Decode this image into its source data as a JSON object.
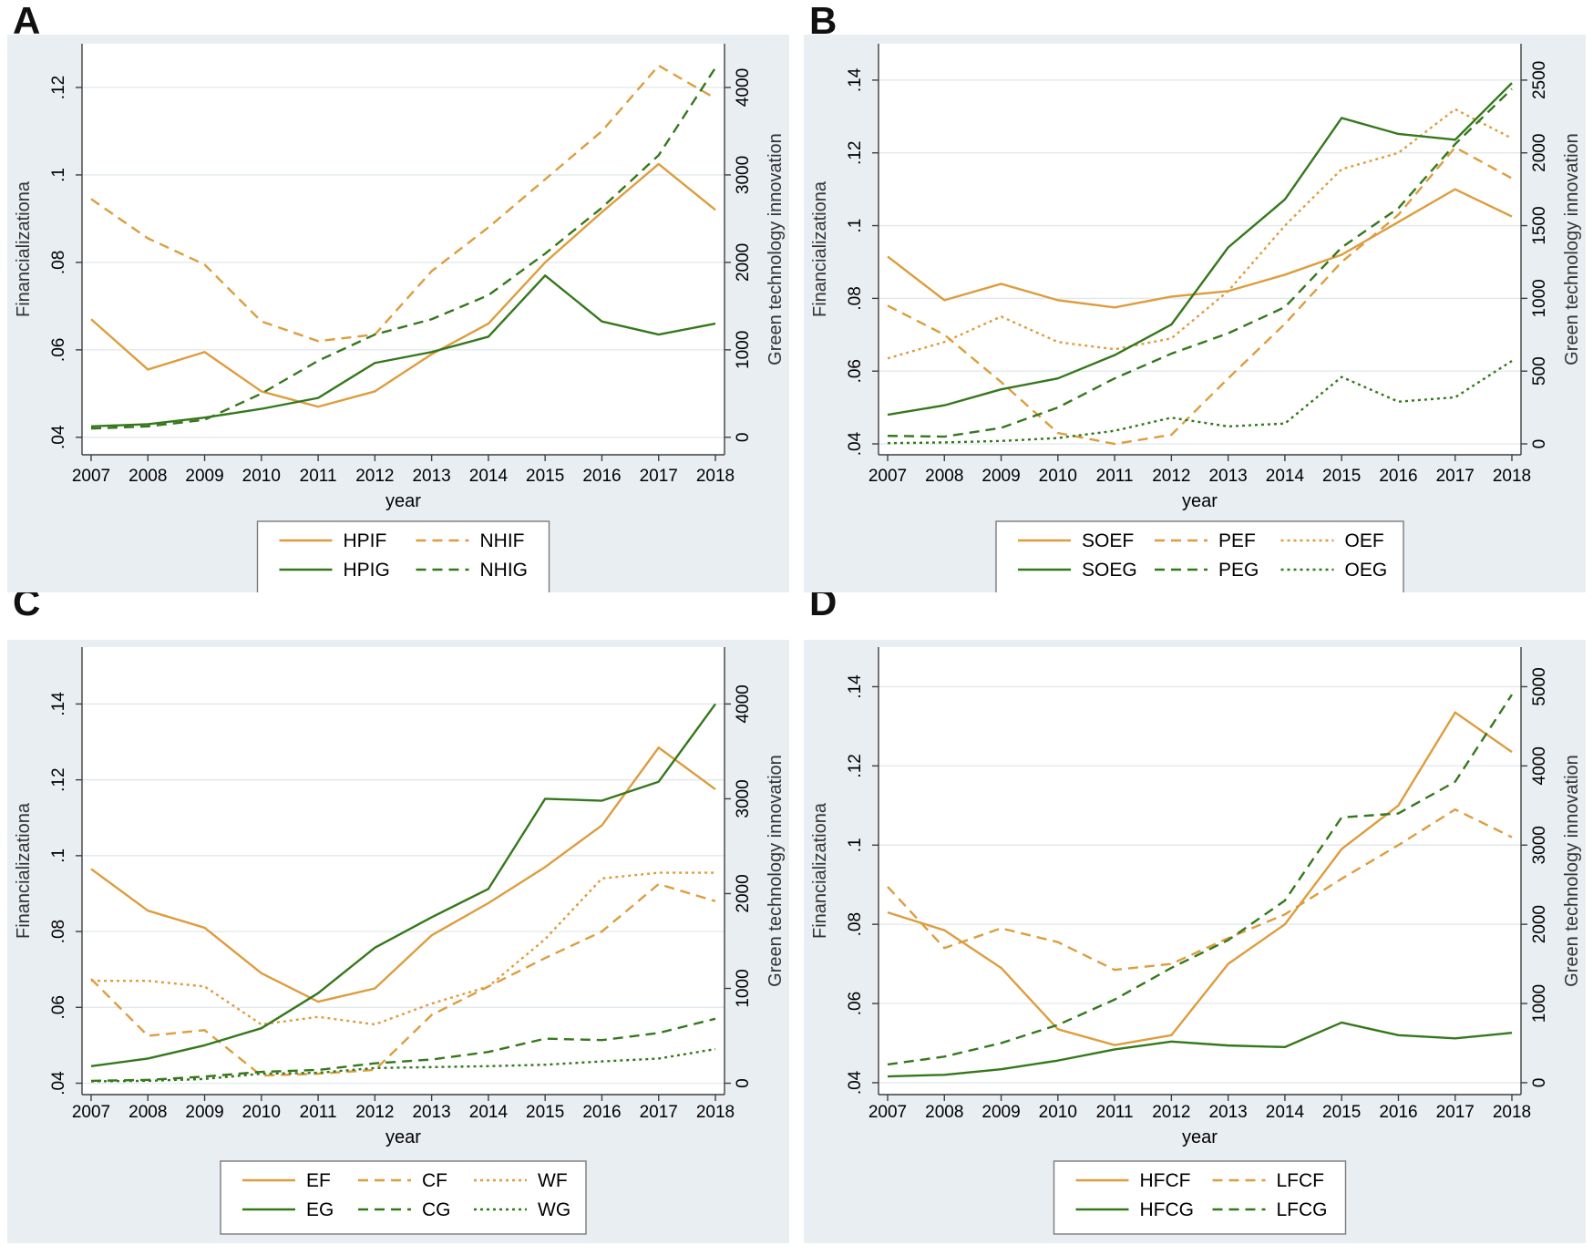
{
  "colors": {
    "orange": "#dd9d3e",
    "green": "#35781c",
    "figure_bg": "#e9eef2",
    "plot_bg": "#ffffff",
    "grid": "#e2e9ee",
    "axis": "#3f3f3f",
    "text": "#000000",
    "legend_border": "#7a7a7a",
    "legend_bg": "#ffffff"
  },
  "chart_data": [
    {
      "label": "A",
      "type": "line",
      "xlabel": "year",
      "ylabel_left": "Financializationa",
      "ylabel_right": "Green technology innovation",
      "x": [
        2007,
        2008,
        2009,
        2010,
        2011,
        2012,
        2013,
        2014,
        2015,
        2016,
        2017,
        2018
      ],
      "grid": true,
      "legend_position": "bottom",
      "left_ticks": {
        "values": [
          0.04,
          0.06,
          0.08,
          0.1,
          0.12
        ],
        "labels": [
          ".04",
          ".06",
          ".08",
          ".1",
          ".12"
        ]
      },
      "right_ticks": {
        "values": [
          0,
          1000,
          2000,
          3000,
          4000
        ],
        "labels": [
          "0",
          "1000",
          "2000",
          "3000",
          "4000"
        ]
      },
      "left_domain": [
        0.036,
        0.13
      ],
      "right_per_left": 50000,
      "series": [
        {
          "name": "HPIF",
          "axis": "left",
          "color": "orange",
          "line_style": "solid",
          "values": [
            0.067,
            0.0555,
            0.0595,
            0.0505,
            0.047,
            0.0505,
            0.059,
            0.066,
            0.08,
            0.0915,
            0.1025,
            0.092
          ]
        },
        {
          "name": "NHIF",
          "axis": "left",
          "color": "orange",
          "line_style": "long-dash",
          "values": [
            0.0945,
            0.0855,
            0.0795,
            0.0665,
            0.062,
            0.0635,
            0.078,
            0.088,
            0.099,
            0.11,
            0.125,
            0.1175
          ]
        },
        {
          "name": "HPIG",
          "axis": "right",
          "color": "green",
          "line_style": "solid",
          "values": [
            125,
            150,
            225,
            325,
            450,
            850,
            975,
            1150,
            1850,
            1325,
            1175,
            1300
          ]
        },
        {
          "name": "NHIG",
          "axis": "right",
          "color": "green",
          "line_style": "long-dash",
          "values": [
            100,
            125,
            200,
            500,
            875,
            1175,
            1350,
            1625,
            2100,
            2625,
            3225,
            4225
          ]
        }
      ],
      "legend_rows": [
        [
          "HPIF",
          "NHIF"
        ],
        [
          "HPIG",
          "NHIG"
        ]
      ]
    },
    {
      "label": "B",
      "type": "line",
      "xlabel": "year",
      "ylabel_left": "Financializationa",
      "ylabel_right": "Green technology innovation",
      "x": [
        2007,
        2008,
        2009,
        2010,
        2011,
        2012,
        2013,
        2014,
        2015,
        2016,
        2017,
        2018
      ],
      "grid": true,
      "legend_position": "bottom",
      "left_ticks": {
        "values": [
          0.04,
          0.06,
          0.08,
          0.1,
          0.12,
          0.14
        ],
        "labels": [
          ".04",
          ".06",
          ".08",
          ".1",
          ".12",
          ".14"
        ]
      },
      "right_ticks": {
        "values": [
          0,
          500,
          1000,
          1500,
          2000,
          2500
        ],
        "labels": [
          "0",
          "500",
          "1000",
          "1500",
          "2000",
          "2500"
        ]
      },
      "left_domain": [
        0.037,
        0.15
      ],
      "right_per_left": 25000,
      "series": [
        {
          "name": "SOEF",
          "axis": "left",
          "color": "orange",
          "line_style": "solid",
          "values": [
            0.0915,
            0.0795,
            0.084,
            0.0795,
            0.0775,
            0.0805,
            0.082,
            0.0865,
            0.092,
            0.101,
            0.11,
            0.1025
          ]
        },
        {
          "name": "PEF",
          "axis": "left",
          "color": "orange",
          "line_style": "long-dash",
          "values": [
            0.078,
            0.07,
            0.057,
            0.043,
            0.04,
            0.0425,
            0.058,
            0.073,
            0.09,
            0.103,
            0.1215,
            0.113
          ]
        },
        {
          "name": "OEF",
          "axis": "left",
          "color": "orange",
          "line_style": "dot",
          "values": [
            0.0635,
            0.068,
            0.075,
            0.068,
            0.066,
            0.069,
            0.082,
            0.1,
            0.1155,
            0.12,
            0.132,
            0.124
          ]
        },
        {
          "name": "SOEG",
          "axis": "right",
          "color": "green",
          "line_style": "solid",
          "values": [
            200,
            265,
            375,
            450,
            610,
            820,
            1350,
            1680,
            2240,
            2130,
            2090,
            2480
          ]
        },
        {
          "name": "PEG",
          "axis": "right",
          "color": "green",
          "line_style": "long-dash",
          "values": [
            55,
            50,
            110,
            250,
            450,
            620,
            760,
            940,
            1350,
            1620,
            2060,
            2440
          ]
        },
        {
          "name": "OEG",
          "axis": "right",
          "color": "green",
          "line_style": "dot",
          "values": [
            5,
            10,
            20,
            40,
            90,
            180,
            120,
            140,
            460,
            290,
            320,
            570
          ]
        }
      ],
      "legend_rows": [
        [
          "SOEF",
          "PEF",
          "OEF"
        ],
        [
          "SOEG",
          "PEG",
          "OEG"
        ]
      ]
    },
    {
      "label": "C",
      "type": "line",
      "xlabel": "year",
      "ylabel_left": "Financializationa",
      "ylabel_right": "Green technology innovation",
      "x": [
        2007,
        2008,
        2009,
        2010,
        2011,
        2012,
        2013,
        2014,
        2015,
        2016,
        2017,
        2018
      ],
      "grid": true,
      "legend_position": "bottom",
      "left_ticks": {
        "values": [
          0.04,
          0.06,
          0.08,
          0.1,
          0.12,
          0.14
        ],
        "labels": [
          ".04",
          ".06",
          ".08",
          ".1",
          ".12",
          ".14"
        ]
      },
      "right_ticks": {
        "values": [
          0,
          1000,
          2000,
          3000,
          4000
        ],
        "labels": [
          "0",
          "1000",
          "2000",
          "3000",
          "4000"
        ]
      },
      "left_domain": [
        0.037,
        0.155
      ],
      "right_per_left": 40000,
      "series": [
        {
          "name": "EF",
          "axis": "left",
          "color": "orange",
          "line_style": "solid",
          "values": [
            0.0965,
            0.0855,
            0.081,
            0.069,
            0.0615,
            0.065,
            0.079,
            0.0875,
            0.097,
            0.108,
            0.1285,
            0.1175
          ]
        },
        {
          "name": "CF",
          "axis": "left",
          "color": "orange",
          "line_style": "long-dash",
          "values": [
            0.0675,
            0.0525,
            0.054,
            0.042,
            0.0425,
            0.0435,
            0.058,
            0.0655,
            0.073,
            0.08,
            0.0925,
            0.088
          ]
        },
        {
          "name": "WF",
          "axis": "left",
          "color": "orange",
          "line_style": "dot",
          "values": [
            0.067,
            0.067,
            0.0655,
            0.0555,
            0.0575,
            0.0555,
            0.061,
            0.0655,
            0.078,
            0.094,
            0.0955,
            0.0955
          ]
        },
        {
          "name": "EG",
          "axis": "right",
          "color": "green",
          "line_style": "solid",
          "values": [
            180,
            260,
            400,
            580,
            950,
            1430,
            1750,
            2050,
            3000,
            2980,
            3180,
            4000
          ]
        },
        {
          "name": "CG",
          "axis": "right",
          "color": "green",
          "line_style": "long-dash",
          "values": [
            25,
            35,
            70,
            120,
            140,
            210,
            250,
            330,
            470,
            455,
            530,
            680
          ]
        },
        {
          "name": "WG",
          "axis": "right",
          "color": "green",
          "line_style": "dot",
          "values": [
            20,
            25,
            45,
            100,
            110,
            160,
            170,
            180,
            195,
            230,
            260,
            360
          ]
        }
      ],
      "legend_rows": [
        [
          "EF",
          "CF",
          "WF"
        ],
        [
          "EG",
          "CG",
          "WG"
        ]
      ]
    },
    {
      "label": "D",
      "type": "line",
      "xlabel": "year",
      "ylabel_left": "Financializationa",
      "ylabel_right": "Green technology innovation",
      "x": [
        2007,
        2008,
        2009,
        2010,
        2011,
        2012,
        2013,
        2014,
        2015,
        2016,
        2017,
        2018
      ],
      "grid": true,
      "legend_position": "bottom",
      "left_ticks": {
        "values": [
          0.04,
          0.06,
          0.08,
          0.1,
          0.12,
          0.14
        ],
        "labels": [
          ".04",
          ".06",
          ".08",
          ".1",
          ".12",
          ".14"
        ]
      },
      "right_ticks": {
        "values": [
          0,
          1000,
          2000,
          3000,
          4000,
          5000
        ],
        "labels": [
          "0",
          "1000",
          "2000",
          "3000",
          "4000",
          "5000"
        ]
      },
      "left_domain": [
        0.037,
        0.15
      ],
      "right_per_left": 50000,
      "series": [
        {
          "name": "HFCF",
          "axis": "left",
          "color": "orange",
          "line_style": "solid",
          "values": [
            0.083,
            0.0785,
            0.069,
            0.0535,
            0.0495,
            0.052,
            0.07,
            0.08,
            0.099,
            0.11,
            0.1335,
            0.1235
          ]
        },
        {
          "name": "LFCF",
          "axis": "left",
          "color": "orange",
          "line_style": "long-dash",
          "values": [
            0.0895,
            0.074,
            0.079,
            0.0755,
            0.0685,
            0.07,
            0.0765,
            0.0825,
            0.0915,
            0.1,
            0.109,
            0.102
          ]
        },
        {
          "name": "HFCG",
          "axis": "right",
          "color": "green",
          "line_style": "solid",
          "values": [
            80,
            100,
            170,
            280,
            420,
            520,
            470,
            450,
            760,
            600,
            560,
            630
          ]
        },
        {
          "name": "LFCG",
          "axis": "right",
          "color": "green",
          "line_style": "long-dash",
          "values": [
            230,
            330,
            500,
            730,
            1050,
            1450,
            1800,
            2300,
            3350,
            3400,
            3800,
            4900
          ]
        }
      ],
      "legend_rows": [
        [
          "HFCF",
          "LFCF"
        ],
        [
          "HFCG",
          "LFCG"
        ]
      ]
    }
  ]
}
